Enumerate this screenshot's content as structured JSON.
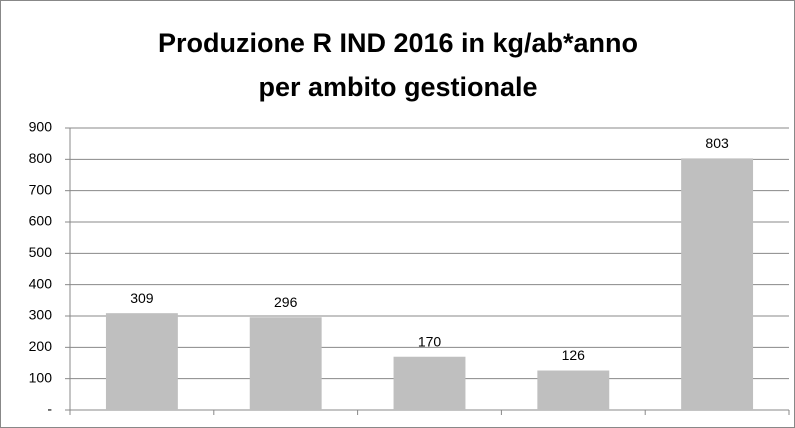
{
  "chart_data": {
    "type": "bar",
    "title": [
      "Produzione R IND 2016 in kg/ab*anno",
      "per ambito gestionale"
    ],
    "categories": [
      null,
      null,
      null,
      null,
      null
    ],
    "values": [
      309,
      296,
      170,
      126,
      803
    ],
    "color": "#bfbfbf",
    "ylim": [
      0,
      900
    ],
    "yticks": [
      {
        "value": 0,
        "label": "-"
      },
      100,
      200,
      300,
      400,
      500,
      600,
      700,
      800,
      900
    ],
    "grid": true
  }
}
